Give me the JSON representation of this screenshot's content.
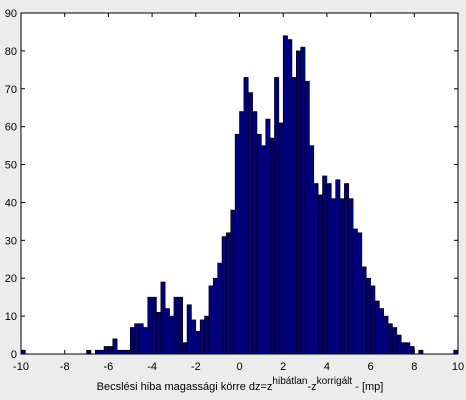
{
  "chart_data": {
    "type": "histogram",
    "xlabel": [
      "Becslési hiba magassági körre dz=z",
      "hibátlan",
      "-z",
      "korrigált",
      " - [mp]"
    ],
    "bins": [
      -10,
      -9.8,
      -9.6,
      -9.4,
      -9.2,
      -9,
      -8.8,
      -8.6,
      -8.4,
      -8.2,
      -8,
      -7.8,
      -7.6,
      -7.4,
      -7.2,
      -7,
      -6.8,
      -6.6,
      -6.4,
      -6.2,
      -6,
      -5.8,
      -5.6,
      -5.4,
      -5.2,
      -5,
      -4.8,
      -4.6,
      -4.4,
      -4.2,
      -4,
      -3.8,
      -3.6,
      -3.4,
      -3.2,
      -3,
      -2.8,
      -2.6,
      -2.4,
      -2.2,
      -2,
      -1.8,
      -1.6,
      -1.4,
      -1.2,
      -1,
      -0.8,
      -0.6,
      -0.4,
      -0.2,
      0,
      0.2,
      0.4,
      0.6,
      0.8,
      1,
      1.2,
      1.4,
      1.6,
      1.8,
      2,
      2.2,
      2.4,
      2.6,
      2.8,
      3,
      3.2,
      3.4,
      3.6,
      3.8,
      4,
      4.2,
      4.4,
      4.6,
      4.8,
      5,
      5.2,
      5.4,
      5.6,
      5.8,
      6,
      6.2,
      6.4,
      6.6,
      6.8,
      7,
      7.2,
      7.4,
      7.6,
      7.8,
      8,
      8.2,
      8.4,
      8.6,
      8.8,
      9,
      9.2,
      9.4,
      9.6,
      9.8,
      10
    ],
    "values": [
      1,
      0,
      0,
      0,
      0,
      0,
      0,
      0,
      0,
      0,
      0,
      0,
      0,
      0,
      0,
      1,
      0,
      1,
      1,
      2,
      2,
      4,
      1,
      1,
      1,
      7,
      8,
      8,
      7,
      15,
      15,
      11,
      19,
      12,
      10,
      15,
      15,
      3,
      13,
      9,
      6,
      9,
      10,
      18,
      20,
      24,
      31,
      32,
      38,
      58,
      64,
      73,
      69,
      64,
      58,
      55,
      62,
      57,
      73,
      61,
      84,
      83,
      73,
      80,
      81,
      72,
      55,
      45,
      42,
      47,
      45,
      41,
      46,
      41,
      45,
      41,
      33,
      32,
      23,
      20,
      18,
      14,
      12,
      10,
      8,
      7,
      5,
      3,
      3,
      2,
      0,
      1,
      0,
      0,
      0,
      0,
      0,
      0,
      0,
      1
    ],
    "color": "#00007f",
    "xlim": [
      -10,
      10
    ],
    "xticks": [
      -10,
      -8,
      -6,
      -4,
      -2,
      0,
      2,
      4,
      6,
      8,
      10
    ],
    "ylim": [
      0,
      90
    ],
    "yticks": [
      0,
      10,
      20,
      30,
      40,
      50,
      60,
      70,
      80,
      90
    ]
  }
}
